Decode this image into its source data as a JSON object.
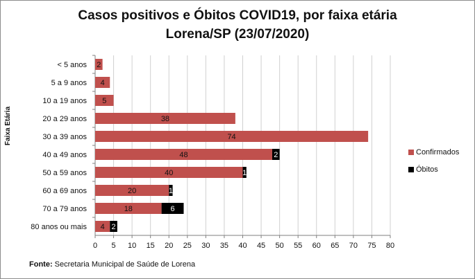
{
  "chart_data": {
    "type": "bar",
    "orientation": "horizontal",
    "stacked": true,
    "title": "Casos positivos  e Óbitos COVID19, por faixa etária",
    "subtitle": "Lorena/SP (23/07/2020)",
    "ylabel": "Faixa Etária",
    "xlabel": "",
    "categories": [
      "< 5 anos",
      "5 a 9 anos",
      "10 a 19 anos",
      "20 a 29 anos",
      "30 a 39 anos",
      "40 a 49 anos",
      "50 a 59 anos",
      "60 a 69 anos",
      "70 a 79 anos",
      "80 anos ou mais"
    ],
    "series": [
      {
        "name": "Confirmados",
        "color": "#c0504d",
        "values": [
          2,
          4,
          5,
          38,
          74,
          48,
          40,
          20,
          18,
          4
        ],
        "labels": [
          "2",
          "4",
          "5",
          "38",
          "74",
          "48",
          "40",
          "20",
          "18",
          "4"
        ]
      },
      {
        "name": "Óbitos",
        "color": "#000000",
        "values": [
          0,
          0,
          0,
          0,
          0,
          2,
          1,
          1,
          6,
          2
        ],
        "labels": [
          "",
          "",
          "",
          "",
          "",
          "2",
          "1",
          "1",
          "6",
          "2"
        ]
      }
    ],
    "xlim": [
      0,
      80
    ],
    "xticks": [
      "0",
      "5",
      "10",
      "15",
      "20",
      "25",
      "30",
      "35",
      "40",
      "45",
      "50",
      "55",
      "60",
      "65",
      "70",
      "75",
      "80"
    ],
    "grid": true,
    "legend_position": "right"
  },
  "source": {
    "label": "Fonte:",
    "text": " Secretaria Municipal de Saúde de Lorena"
  }
}
